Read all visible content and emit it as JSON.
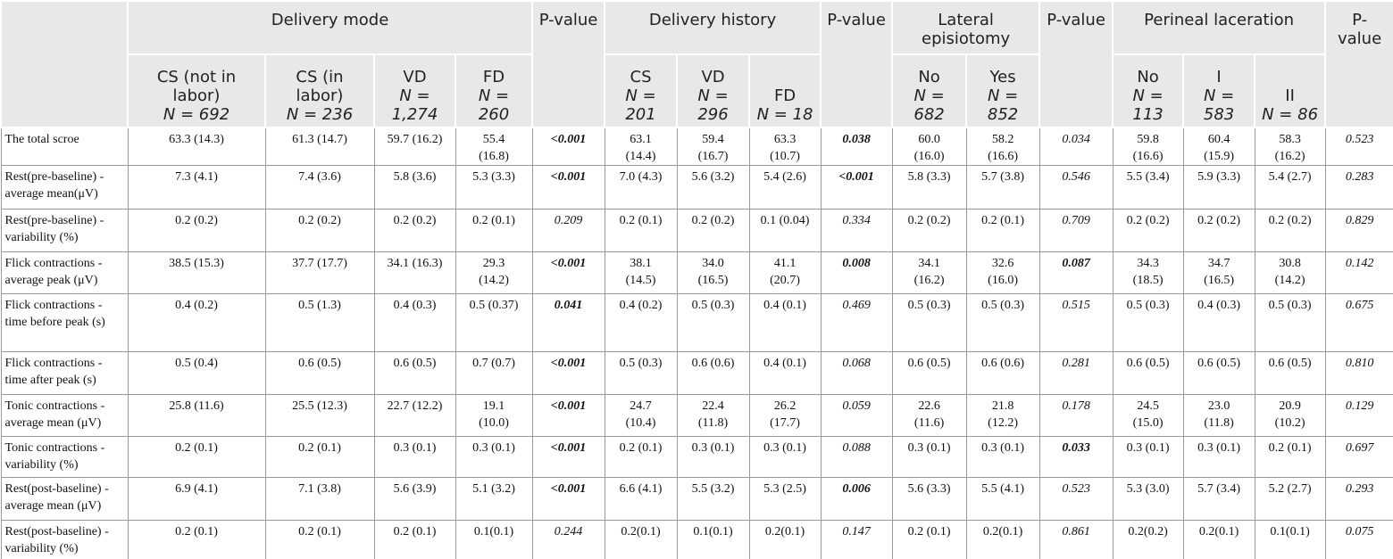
{
  "table": {
    "groups": [
      {
        "title": "Delivery mode",
        "p_label": "P-value",
        "columns": [
          {
            "name": "CS (not in labor)",
            "n": "N = 692"
          },
          {
            "name": "CS (in labor)",
            "n": "N = 236"
          },
          {
            "name": "VD",
            "n": "N = 1,274"
          },
          {
            "name": "FD",
            "n": "N = 260"
          }
        ]
      },
      {
        "title": "Delivery history",
        "p_label": "P-value",
        "columns": [
          {
            "name": "CS",
            "n": "N = 201"
          },
          {
            "name": "VD",
            "n": "N = 296"
          },
          {
            "name": "FD",
            "n": "N = 18"
          }
        ]
      },
      {
        "title": "Lateral episiotomy",
        "p_label": "P-value",
        "columns": [
          {
            "name": "No",
            "n": "N = 682"
          },
          {
            "name": "Yes",
            "n": "N = 852"
          }
        ]
      },
      {
        "title": "Perineal laceration",
        "p_label": "P-value",
        "columns": [
          {
            "name": "No",
            "n": "N = 113"
          },
          {
            "name": "I",
            "n": "N = 583"
          },
          {
            "name": "II",
            "n": "N = 86"
          }
        ]
      }
    ],
    "rows": [
      {
        "label": "The total scroe",
        "cells": [
          "63.3 (14.3)",
          "61.3 (14.7)",
          "59.7 (16.2)",
          "55.4 (16.8)",
          {
            "text": "<0.001",
            "bold": true
          },
          "63.1 (14.4)",
          "59.4 (16.7)",
          "63.3 (10.7)",
          {
            "text": "0.038",
            "bold": true
          },
          "60.0 (16.0)",
          "58.2 (16.6)",
          {
            "text": "0.034",
            "bold": false
          },
          "59.8 (16.6)",
          "60.4 (15.9)",
          "58.3 (16.2)",
          {
            "text": "0.523",
            "bold": false
          }
        ]
      },
      {
        "label": "Rest(pre-baseline) -average mean(μV)",
        "cells": [
          "7.3 (4.1)",
          "7.4 (3.6)",
          "5.8 (3.6)",
          "5.3 (3.3)",
          {
            "text": "<0.001",
            "bold": true
          },
          "7.0 (4.3)",
          "5.6 (3.2)",
          "5.4 (2.6)",
          {
            "text": "<0.001",
            "bold": true
          },
          "5.8 (3.3)",
          "5.7 (3.8)",
          {
            "text": "0.546",
            "bold": false
          },
          "5.5 (3.4)",
          "5.9 (3.3)",
          "5.4 (2.7)",
          {
            "text": "0.283",
            "bold": false
          }
        ]
      },
      {
        "label": "Rest(pre-baseline) -variability (%)",
        "cells": [
          "0.2 (0.2)",
          "0.2 (0.2)",
          "0.2 (0.2)",
          "0.2 (0.1)",
          {
            "text": "0.209",
            "bold": false
          },
          "0.2 (0.1)",
          "0.2 (0.2)",
          "0.1 (0.04)",
          {
            "text": "0.334",
            "bold": false
          },
          "0.2 (0.2)",
          "0.2 (0.1)",
          {
            "text": "0.709",
            "bold": false
          },
          "0.2 (0.2)",
          "0.2 (0.2)",
          "0.2 (0.2)",
          {
            "text": "0.829",
            "bold": false
          }
        ]
      },
      {
        "label": "Flick contractions -average peak (μV)",
        "cells": [
          "38.5 (15.3)",
          "37.7 (17.7)",
          "34.1 (16.3)",
          "29.3 (14.2)",
          {
            "text": "<0.001",
            "bold": true
          },
          "38.1 (14.5)",
          "34.0 (16.5)",
          "41.1 (20.7)",
          {
            "text": "0.008",
            "bold": true
          },
          "34.1 (16.2)",
          "32.6 (16.0)",
          {
            "text": "0.087",
            "bold": true
          },
          "34.3 (18.5)",
          "34.7 (16.5)",
          "30.8 (14.2)",
          {
            "text": "0.142",
            "bold": false
          }
        ]
      },
      {
        "label": "Flick contractions -time before peak (s)",
        "cells": [
          "0.4 (0.2)",
          "0.5 (1.3)",
          "0.4 (0.3)",
          "0.5 (0.37)",
          {
            "text": "0.041",
            "bold": true
          },
          "0.4 (0.2)",
          "0.5 (0.3)",
          "0.4 (0.1)",
          {
            "text": "0.469",
            "bold": false
          },
          "0.5 (0.3)",
          "0.5 (0.3)",
          {
            "text": "0.515",
            "bold": false
          },
          "0.5 (0.3)",
          "0.4 (0.3)",
          "0.5 (0.3)",
          {
            "text": "0.675",
            "bold": false
          }
        ]
      },
      {
        "label": "Flick contractions -time after peak (s)",
        "cells": [
          "0.5 (0.4)",
          "0.6 (0.5)",
          "0.6 (0.5)",
          "0.7 (0.7)",
          {
            "text": "<0.001",
            "bold": true
          },
          "0.5 (0.3)",
          "0.6 (0.6)",
          "0.4 (0.1)",
          {
            "text": "0.068",
            "bold": false
          },
          "0.6 (0.5)",
          "0.6 (0.6)",
          {
            "text": "0.281",
            "bold": false
          },
          "0.6 (0.5)",
          "0.6 (0.5)",
          "0.6 (0.5)",
          {
            "text": "0.810",
            "bold": false
          }
        ]
      },
      {
        "label": "Tonic contractions -average mean (μV)",
        "cells": [
          "25.8 (11.6)",
          "25.5 (12.3)",
          "22.7 (12.2)",
          "19.1 (10.0)",
          {
            "text": "<0.001",
            "bold": true
          },
          "24.7 (10.4)",
          "22.4 (11.8)",
          "26.2 (17.7)",
          {
            "text": "0.059",
            "bold": false
          },
          "22.6 (11.6)",
          "21.8 (12.2)",
          {
            "text": "0.178",
            "bold": false
          },
          "24.5 (15.0)",
          "23.0 (11.8)",
          "20.9 (10.2)",
          {
            "text": "0.129",
            "bold": false
          }
        ]
      },
      {
        "label": "Tonic contractions -variability (%)",
        "cells": [
          "0.2 (0.1)",
          "0.2 (0.1)",
          "0.3 (0.1)",
          "0.3 (0.1)",
          {
            "text": "<0.001",
            "bold": true
          },
          "0.2 (0.1)",
          "0.3 (0.1)",
          "0.3 (0.1)",
          {
            "text": "0.088",
            "bold": false
          },
          "0.3 (0.1)",
          "0.3 (0.1)",
          {
            "text": "0.033",
            "bold": true
          },
          "0.3 (0.1)",
          "0.3 (0.1)",
          "0.2 (0.1)",
          {
            "text": "0.697",
            "bold": false
          }
        ]
      },
      {
        "label": "Rest(post-baseline) -average mean (μV)",
        "cells": [
          "6.9 (4.1)",
          "7.1 (3.8)",
          "5.6 (3.9)",
          "5.1 (3.2)",
          {
            "text": "<0.001",
            "bold": true
          },
          "6.6 (4.1)",
          "5.5 (3.2)",
          "5.3 (2.5)",
          {
            "text": "0.006",
            "bold": true
          },
          "5.6 (3.3)",
          "5.5 (4.1)",
          {
            "text": "0.523",
            "bold": false
          },
          "5.3 (3.0)",
          "5.7 (3.4)",
          "5.2 (2.7)",
          {
            "text": "0.293",
            "bold": false
          }
        ]
      },
      {
        "label": "Rest(post-baseline) -variability (%)",
        "cells": [
          "0.2 (0.1)",
          "0.2 (0.1)",
          "0.2 (0.1)",
          "0.1(0.1)",
          {
            "text": "0.244",
            "bold": false
          },
          "0.2(0.1)",
          "0.1(0.1)",
          "0.2(0.1)",
          {
            "text": "0.147",
            "bold": false
          },
          "0.2 (0.1)",
          "0.2(0.1)",
          {
            "text": "0.861",
            "bold": false
          },
          "0.2(0.2)",
          "0.2(0.1)",
          "0.1(0.1)",
          {
            "text": "0.075",
            "bold": false
          }
        ]
      }
    ]
  }
}
